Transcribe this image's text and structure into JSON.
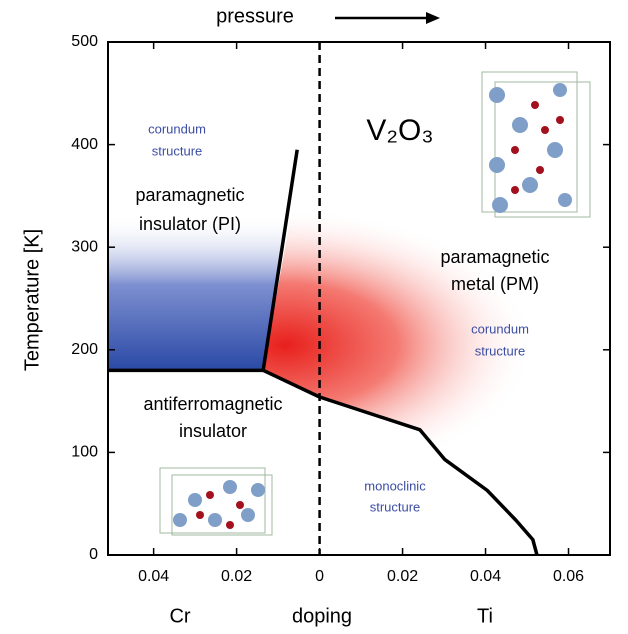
{
  "chart_data": {
    "type": "line",
    "top_label": "pressure",
    "xlabel": "doping",
    "x_side_labels": [
      "Cr",
      "Ti"
    ],
    "ylabel": "Temperature  [K]",
    "xlim": [
      -0.051,
      0.07
    ],
    "ylim": [
      0,
      500
    ],
    "xticks": [
      {
        "value": -0.04,
        "label": "0.04"
      },
      {
        "value": -0.02,
        "label": "0.02"
      },
      0,
      0.02,
      0.04,
      0.06
    ],
    "yticks": [
      0,
      100,
      200,
      300,
      400,
      500
    ],
    "vlines": [
      0
    ],
    "series": [
      {
        "color": "#000000",
        "x": [
          -0.051,
          -0.0136,
          -0.0054
        ],
        "values": [
          180,
          180,
          395
        ]
      },
      {
        "color": "#000000",
        "x": [
          -0.0136,
          0,
          0.0242,
          0.0302,
          0.0404,
          0.0473,
          0.0514,
          0.0524
        ],
        "values": [
          180,
          154,
          122,
          93,
          63,
          34,
          15,
          0
        ]
      }
    ],
    "annotations": [
      {
        "lines": [
          "corundum",
          "structure"
        ],
        "color": "#3b4ea3"
      },
      {
        "lines": [
          "paramagnetic",
          "insulator (PI)"
        ],
        "color": "#000000"
      },
      {
        "lines": [
          "V₂O₃"
        ],
        "color": "#000000"
      },
      {
        "lines": [
          "paramagnetic",
          "metal (PM)"
        ],
        "color": "#000000"
      },
      {
        "lines": [
          "corundum",
          "structure"
        ],
        "color": "#3b4ea3"
      },
      {
        "lines": [
          "antiferromagnetic",
          "insulator"
        ],
        "color": "#000000"
      },
      {
        "lines": [
          "monoclinic",
          "structure"
        ],
        "color": "#3b4ea3"
      }
    ]
  }
}
